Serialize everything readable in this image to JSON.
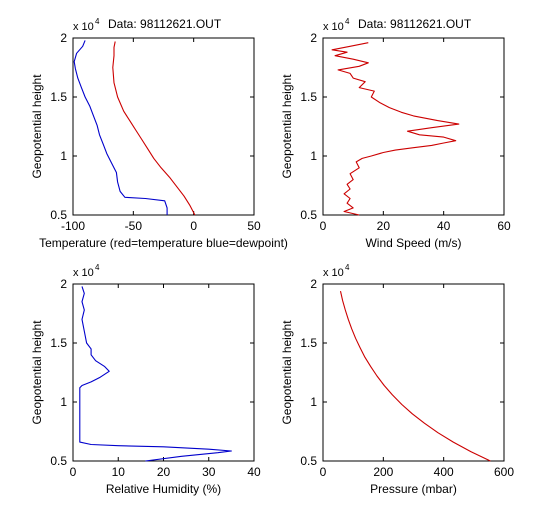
{
  "chart_data": [
    {
      "type": "line",
      "title": "Data: 98112621.OUT",
      "xlabel": "Temperature (red=temperature blue=dewpoint)",
      "ylabel": "Geopotential height",
      "y_exponent_label": "x 10",
      "y_exponent_power": "4",
      "xlim": [
        -100,
        50
      ],
      "ylim": [
        0.5,
        2
      ],
      "xticks": [
        -100,
        -50,
        0,
        50
      ],
      "xtick_labels": [
        "-100",
        "-50",
        "0",
        "50"
      ],
      "yticks": [
        0.5,
        1,
        1.5,
        2
      ],
      "ytick_labels": [
        "0.5",
        "1",
        "1.5",
        "2"
      ],
      "series": [
        {
          "color": "#cc0000",
          "x": [
            1,
            -3,
            -8,
            -14,
            -20,
            -27,
            -33,
            -38,
            -43,
            -48,
            -53,
            -58,
            -63,
            -66,
            -67,
            -66,
            -66,
            -65
          ],
          "y": [
            0.5,
            0.58,
            0.66,
            0.74,
            0.82,
            0.9,
            0.98,
            1.06,
            1.14,
            1.22,
            1.3,
            1.38,
            1.5,
            1.62,
            1.75,
            1.85,
            1.92,
            1.97
          ]
        },
        {
          "color": "#0000cc",
          "x": [
            -22,
            -22,
            -24,
            -40,
            -57,
            -61,
            -63,
            -64,
            -68,
            -72,
            -75,
            -78,
            -80,
            -83,
            -86,
            -90,
            -93,
            -96,
            -98,
            -99,
            -97,
            -92,
            -90
          ],
          "y": [
            0.5,
            0.56,
            0.62,
            0.64,
            0.65,
            0.7,
            0.78,
            0.86,
            0.94,
            1.02,
            1.1,
            1.18,
            1.26,
            1.34,
            1.42,
            1.5,
            1.58,
            1.66,
            1.74,
            1.8,
            1.87,
            1.93,
            1.98
          ]
        }
      ]
    },
    {
      "type": "line",
      "title": "Data: 98112621.OUT",
      "xlabel": "Wind Speed (m/s)",
      "ylabel": "Geopotential height",
      "y_exponent_label": "x 10",
      "y_exponent_power": "4",
      "xlim": [
        0,
        60
      ],
      "ylim": [
        0.5,
        2
      ],
      "xticks": [
        0,
        20,
        40,
        60
      ],
      "xtick_labels": [
        "0",
        "20",
        "40",
        "60"
      ],
      "yticks": [
        0.5,
        1,
        1.5,
        2
      ],
      "ytick_labels": [
        "0.5",
        "1",
        "1.5",
        "2"
      ],
      "series": [
        {
          "color": "#cc0000",
          "x": [
            12,
            7,
            10,
            8,
            9,
            7,
            9,
            8,
            10,
            9,
            12,
            11,
            13,
            16,
            20,
            24,
            30,
            36,
            40,
            44,
            40,
            32,
            28,
            36,
            45,
            38,
            30,
            26,
            22,
            19,
            16,
            17,
            12,
            14,
            10,
            9,
            5,
            12,
            15,
            10,
            4,
            8,
            3,
            9,
            15
          ],
          "y": [
            0.5,
            0.53,
            0.56,
            0.6,
            0.64,
            0.68,
            0.72,
            0.76,
            0.8,
            0.85,
            0.9,
            0.95,
            0.98,
            1.0,
            1.03,
            1.05,
            1.07,
            1.09,
            1.11,
            1.13,
            1.16,
            1.18,
            1.21,
            1.24,
            1.27,
            1.3,
            1.34,
            1.37,
            1.41,
            1.45,
            1.5,
            1.55,
            1.58,
            1.63,
            1.66,
            1.7,
            1.73,
            1.76,
            1.79,
            1.82,
            1.85,
            1.88,
            1.9,
            1.93,
            1.96
          ]
        }
      ]
    },
    {
      "type": "line",
      "title": "",
      "xlabel": "Relative Humidity (%)",
      "ylabel": "Geopotential height",
      "y_exponent_label": "x 10",
      "y_exponent_power": "4",
      "xlim": [
        0,
        40
      ],
      "ylim": [
        0.5,
        2
      ],
      "xticks": [
        0,
        10,
        20,
        30,
        40
      ],
      "xtick_labels": [
        "0",
        "10",
        "20",
        "30",
        "40"
      ],
      "yticks": [
        0.5,
        1,
        1.5,
        2
      ],
      "ytick_labels": [
        "0.5",
        "1",
        "1.5",
        "2"
      ],
      "series": [
        {
          "color": "#0000cc",
          "x": [
            16,
            24,
            32,
            35,
            30,
            20,
            10,
            4,
            1.5,
            1.5,
            1.5,
            1.5,
            1.5,
            2,
            4,
            6,
            8,
            7,
            5,
            4,
            4,
            3,
            2.5,
            2,
            2.5,
            2,
            2.5,
            2
          ],
          "y": [
            0.5,
            0.54,
            0.57,
            0.585,
            0.6,
            0.62,
            0.63,
            0.64,
            0.66,
            0.8,
            0.95,
            1.05,
            1.12,
            1.14,
            1.17,
            1.21,
            1.26,
            1.3,
            1.35,
            1.4,
            1.45,
            1.5,
            1.6,
            1.7,
            1.78,
            1.85,
            1.92,
            1.98
          ]
        }
      ]
    },
    {
      "type": "line",
      "title": "",
      "xlabel": "Pressure (mbar)",
      "ylabel": "Geopotential height",
      "y_exponent_label": "x 10",
      "y_exponent_power": "4",
      "xlim": [
        0,
        600
      ],
      "ylim": [
        0.5,
        2
      ],
      "xticks": [
        0,
        200,
        400,
        600
      ],
      "xtick_labels": [
        "0",
        "200",
        "400",
        "600"
      ],
      "yticks": [
        0.5,
        1,
        1.5,
        2
      ],
      "ytick_labels": [
        "0.5",
        "1",
        "1.5",
        "2"
      ],
      "series": [
        {
          "color": "#cc0000",
          "x": [
            555,
            490,
            432,
            381,
            336,
            296,
            261,
            230,
            203,
            179,
            158,
            139,
            123,
            108,
            95,
            84,
            74,
            65,
            58
          ],
          "y": [
            0.5,
            0.58,
            0.66,
            0.74,
            0.82,
            0.9,
            0.98,
            1.06,
            1.14,
            1.22,
            1.3,
            1.38,
            1.46,
            1.54,
            1.62,
            1.7,
            1.78,
            1.86,
            1.94
          ]
        }
      ]
    }
  ]
}
